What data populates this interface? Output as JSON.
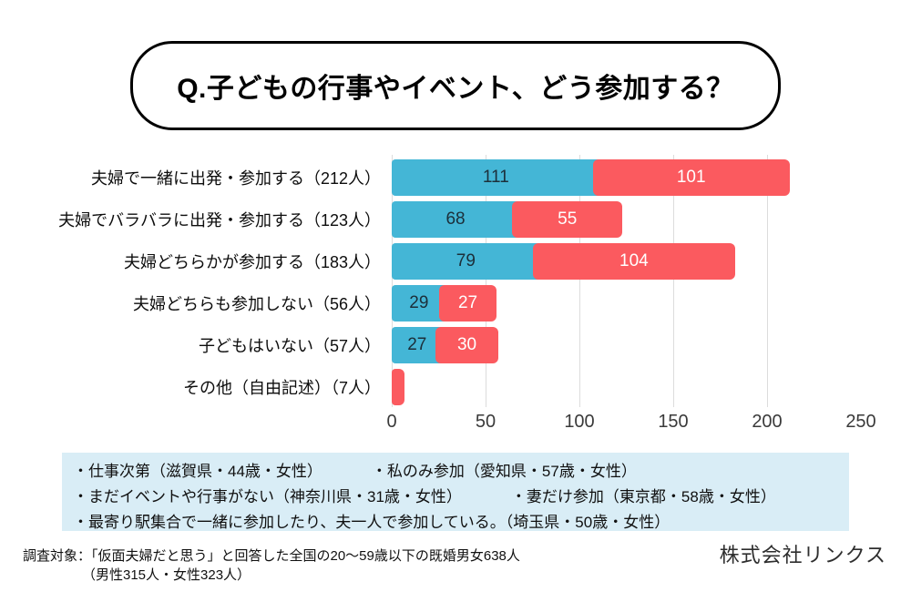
{
  "title": "Q.子どもの行事やイベント、どう参加する？",
  "colors": {
    "blue": "#44b6d6",
    "red": "#fb5a5f",
    "blue_value_label": "#1c2f3a",
    "red_value_label": "#ffffff",
    "grid": "#dcdcdc",
    "quotes_bg": "#d9edf6"
  },
  "chart_data": {
    "type": "bar",
    "orientation": "horizontal",
    "stacked": true,
    "grid": true,
    "categories": [
      "夫婦で一緒に出発・参加する（212人）",
      "夫婦でバラバラに出発・参加する（123人）",
      "夫婦どちらかが参加する（183人）",
      "夫婦どちらも参加しない（56人）",
      "子どもはいない（57人）",
      "その他（自由記述）（7人）"
    ],
    "totals": [
      212,
      123,
      183,
      56,
      57,
      7
    ],
    "series": [
      {
        "name": "blue",
        "color": "#44b6d6",
        "label_color": "#1c2f3a",
        "values": [
          111,
          68,
          79,
          29,
          27,
          0
        ]
      },
      {
        "name": "red",
        "color": "#fb5a5f",
        "label_color": "#ffffff",
        "values": [
          101,
          55,
          104,
          27,
          30,
          7
        ]
      }
    ],
    "xticks": [
      0,
      50,
      100,
      150,
      200,
      250
    ],
    "xlim": [
      0,
      250
    ]
  },
  "quotes_box": {
    "items": [
      "・仕事次第（滋賀県・44歳・女性）",
      "・私のみ参加（愛知県・57歳・女性）",
      "・まだイベントや行事がない（神奈川県・31歳・女性）",
      "・妻だけ参加（東京都・58歳・女性）",
      "・最寄り駅集合で一緒に参加したり、夫一人で参加している。（埼玉県・50歳・女性）"
    ],
    "rows": [
      [
        0,
        1
      ],
      [
        2,
        3
      ],
      [
        4
      ]
    ]
  },
  "footer": {
    "survey_note_line1": "調査対象：「仮面夫婦だと思う」と回答した全国の20〜59歳以下の既婚男女638人",
    "survey_note_line2": "（男性315人・女性323人）",
    "company": "株式会社リンクス"
  }
}
